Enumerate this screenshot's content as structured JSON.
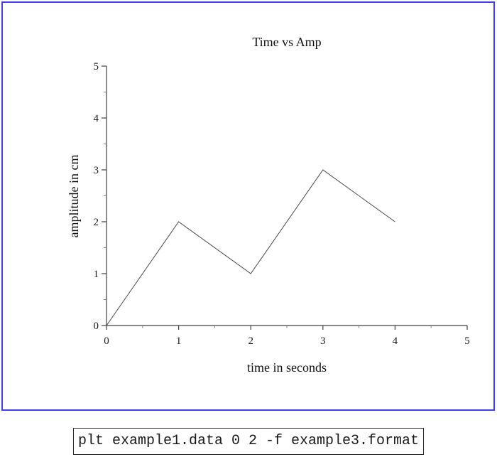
{
  "window": {
    "frame_color": "#4141ec",
    "background": "#ffffff"
  },
  "chart_data": {
    "type": "line",
    "title": "Time vs Amp",
    "xlabel": "time in seconds",
    "ylabel": "amplitude in cm",
    "x": [
      0,
      1,
      2,
      3,
      4
    ],
    "y": [
      0,
      2,
      1,
      3,
      2
    ],
    "xlim": [
      0,
      5
    ],
    "ylim": [
      0,
      5
    ],
    "xticks": [
      0,
      1,
      2,
      3,
      4,
      5
    ],
    "yticks": [
      0,
      1,
      2,
      3,
      4,
      5
    ],
    "minor_tick_step": 0.5,
    "grid": false,
    "legend": null,
    "line_color": "#4a4a4a",
    "axis_color": "#404040",
    "minor_tick_color": "#808080"
  },
  "command_box": {
    "text": "plt example1.data 0 2 -f example3.format"
  }
}
